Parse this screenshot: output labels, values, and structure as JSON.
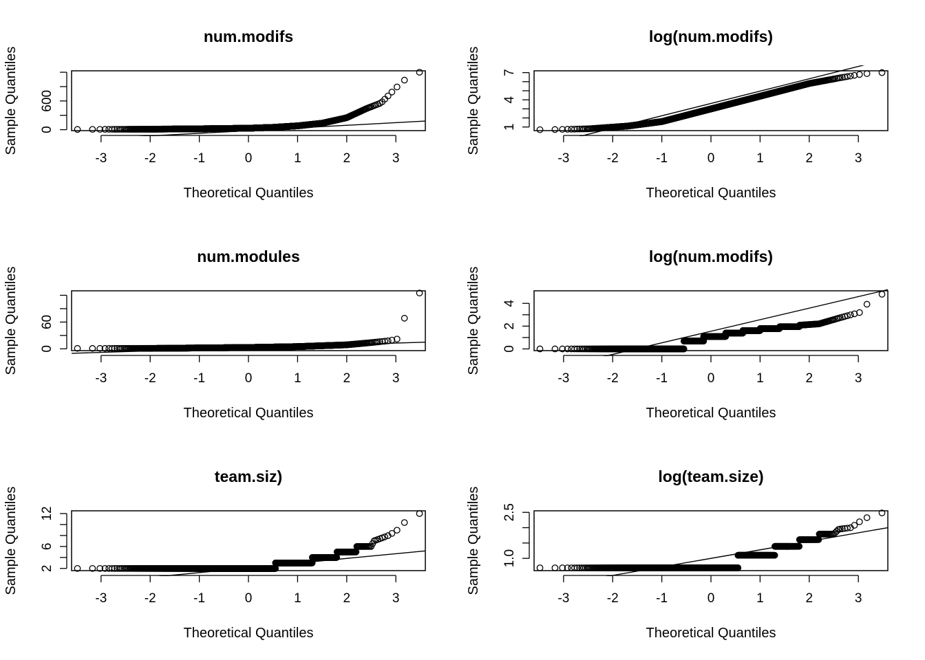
{
  "chart_data": [
    {
      "type": "scatter",
      "title": "num.modifs",
      "xlabel": "Theoretical Quantiles",
      "ylabel": "Sample Quantiles",
      "xlim": [
        -3.6,
        3.6
      ],
      "ylim": [
        -20,
        1230
      ],
      "xticks": [
        -3,
        -2,
        -1,
        0,
        1,
        2,
        3
      ],
      "yticks": [
        0,
        300,
        600,
        900,
        1200
      ],
      "ytick_labels": [
        "0",
        "",
        "600",
        "",
        ""
      ],
      "reference_line": [
        [
          -3.6,
          -220
        ],
        [
          3.6,
          180
        ]
      ],
      "sample_quantile_knots": [
        [
          -3.35,
          5
        ],
        [
          -2,
          10
        ],
        [
          -1,
          18
        ],
        [
          0,
          30
        ],
        [
          0.5,
          48
        ],
        [
          1,
          80
        ],
        [
          1.5,
          135
        ],
        [
          2,
          250
        ],
        [
          2.4,
          440
        ],
        [
          2.7,
          560
        ],
        [
          3.03,
          900
        ],
        [
          3.35,
          1200
        ]
      ]
    },
    {
      "type": "scatter",
      "title": "log(num.modifs)",
      "xlabel": "Theoretical Quantiles",
      "ylabel": "Sample Quantiles",
      "xlim": [
        -3.6,
        3.6
      ],
      "ylim": [
        0.6,
        7.2
      ],
      "xticks": [
        -3,
        -2,
        -1,
        0,
        1,
        2,
        3
      ],
      "yticks": [
        1,
        2,
        3,
        4,
        5,
        6,
        7
      ],
      "ytick_labels": [
        "1",
        "",
        "",
        "4",
        "",
        "",
        "7"
      ],
      "reference_line": [
        [
          -3.6,
          -1.3
        ],
        [
          3.6,
          8.5
        ]
      ],
      "sample_quantile_knots": [
        [
          -3.35,
          0.7
        ],
        [
          -2.5,
          0.8
        ],
        [
          -1.7,
          1.1
        ],
        [
          -1,
          1.6
        ],
        [
          0,
          3
        ],
        [
          1,
          4.4
        ],
        [
          2,
          5.8
        ],
        [
          2.6,
          6.4
        ],
        [
          3.03,
          6.8
        ],
        [
          3.35,
          7
        ]
      ]
    },
    {
      "type": "scatter",
      "title": "num.modules",
      "xlabel": "Theoretical Quantiles",
      "ylabel": "Sample Quantiles",
      "xlim": [
        -3.6,
        3.6
      ],
      "ylim": [
        -4,
        130
      ],
      "xticks": [
        -3,
        -2,
        -1,
        0,
        1,
        2,
        3
      ],
      "yticks": [
        0,
        30,
        60,
        90,
        120
      ],
      "ytick_labels": [
        "0",
        "",
        "60",
        "",
        ""
      ],
      "reference_line": [
        [
          -3.6,
          -10
        ],
        [
          3.6,
          15
        ]
      ],
      "sample_quantile_knots": [
        [
          -3.35,
          1
        ],
        [
          -2,
          1
        ],
        [
          -1,
          2
        ],
        [
          0,
          3
        ],
        [
          1,
          5
        ],
        [
          2,
          9
        ],
        [
          2.5,
          14
        ],
        [
          2.85,
          18
        ],
        [
          3.03,
          22
        ],
        [
          3.35,
          125
        ]
      ]
    },
    {
      "type": "scatter",
      "title": "log(num.modifs)",
      "xlabel": "Theoretical Quantiles",
      "ylabel": "Sample Quantiles",
      "xlim": [
        -3.6,
        3.6
      ],
      "ylim": [
        -0.15,
        5.1
      ],
      "xticks": [
        -3,
        -2,
        -1,
        0,
        1,
        2,
        3
      ],
      "yticks": [
        0,
        1,
        2,
        3,
        4
      ],
      "ytick_labels": [
        "0",
        "",
        "2",
        "",
        "4"
      ],
      "reference_line": [
        [
          -3.6,
          -2.1
        ],
        [
          3.6,
          5.2
        ]
      ],
      "sample_quantile_knots": [
        [
          -3.35,
          0
        ],
        [
          -0.55,
          0
        ],
        [
          -0.55,
          0.69
        ],
        [
          -0.15,
          0.69
        ],
        [
          -0.15,
          1.1
        ],
        [
          0.3,
          1.1
        ],
        [
          0.3,
          1.39
        ],
        [
          0.65,
          1.39
        ],
        [
          0.65,
          1.61
        ],
        [
          1,
          1.61
        ],
        [
          1,
          1.79
        ],
        [
          1.4,
          1.79
        ],
        [
          1.4,
          1.95
        ],
        [
          1.8,
          1.95
        ],
        [
          1.8,
          2.08
        ],
        [
          2.2,
          2.2
        ],
        [
          2.6,
          2.7
        ],
        [
          2.85,
          3
        ],
        [
          3.03,
          3.2
        ],
        [
          3.35,
          4.8
        ]
      ]
    },
    {
      "type": "scatter",
      "title": "team.siz)",
      "xlabel": "Theoretical Quantiles",
      "ylabel": "Sample Quantiles",
      "xlim": [
        -3.6,
        3.6
      ],
      "ylim": [
        1.6,
        12.5
      ],
      "xticks": [
        -3,
        -2,
        -1,
        0,
        1,
        2,
        3
      ],
      "yticks": [
        2,
        4,
        6,
        8,
        10,
        12
      ],
      "ytick_labels": [
        "2",
        "",
        "6",
        "",
        "",
        "12"
      ],
      "reference_line": [
        [
          -3.6,
          -1.0
        ],
        [
          3.6,
          5.2
        ]
      ],
      "sample_quantile_knots": [
        [
          -3.35,
          2
        ],
        [
          0.55,
          2
        ],
        [
          0.55,
          3
        ],
        [
          1.3,
          3
        ],
        [
          1.3,
          4
        ],
        [
          1.8,
          4
        ],
        [
          1.8,
          5
        ],
        [
          2.2,
          5
        ],
        [
          2.2,
          6
        ],
        [
          2.5,
          6
        ],
        [
          2.55,
          7
        ],
        [
          2.7,
          7.5
        ],
        [
          2.85,
          8
        ],
        [
          3.03,
          9
        ],
        [
          3.35,
          12
        ]
      ]
    },
    {
      "type": "scatter",
      "title": "log(team.size)",
      "xlabel": "Theoretical Quantiles",
      "ylabel": "Sample Quantiles",
      "xlim": [
        -3.6,
        3.6
      ],
      "ylim": [
        0.6,
        2.55
      ],
      "xticks": [
        -3,
        -2,
        -1,
        0,
        1,
        2,
        3
      ],
      "yticks": [
        1.0,
        1.5,
        2.0,
        2.5
      ],
      "ytick_labels": [
        "1.0",
        "",
        "",
        "2.5"
      ],
      "reference_line": [
        [
          -3.6,
          0.0
        ],
        [
          3.6,
          2.0
        ]
      ],
      "sample_quantile_knots": [
        [
          -3.35,
          0.69
        ],
        [
          0.55,
          0.69
        ],
        [
          0.55,
          1.1
        ],
        [
          1.3,
          1.1
        ],
        [
          1.3,
          1.39
        ],
        [
          1.8,
          1.39
        ],
        [
          1.8,
          1.61
        ],
        [
          2.2,
          1.61
        ],
        [
          2.2,
          1.79
        ],
        [
          2.5,
          1.79
        ],
        [
          2.6,
          1.95
        ],
        [
          2.85,
          2.0
        ],
        [
          3.03,
          2.2
        ],
        [
          3.35,
          2.48
        ]
      ]
    }
  ]
}
